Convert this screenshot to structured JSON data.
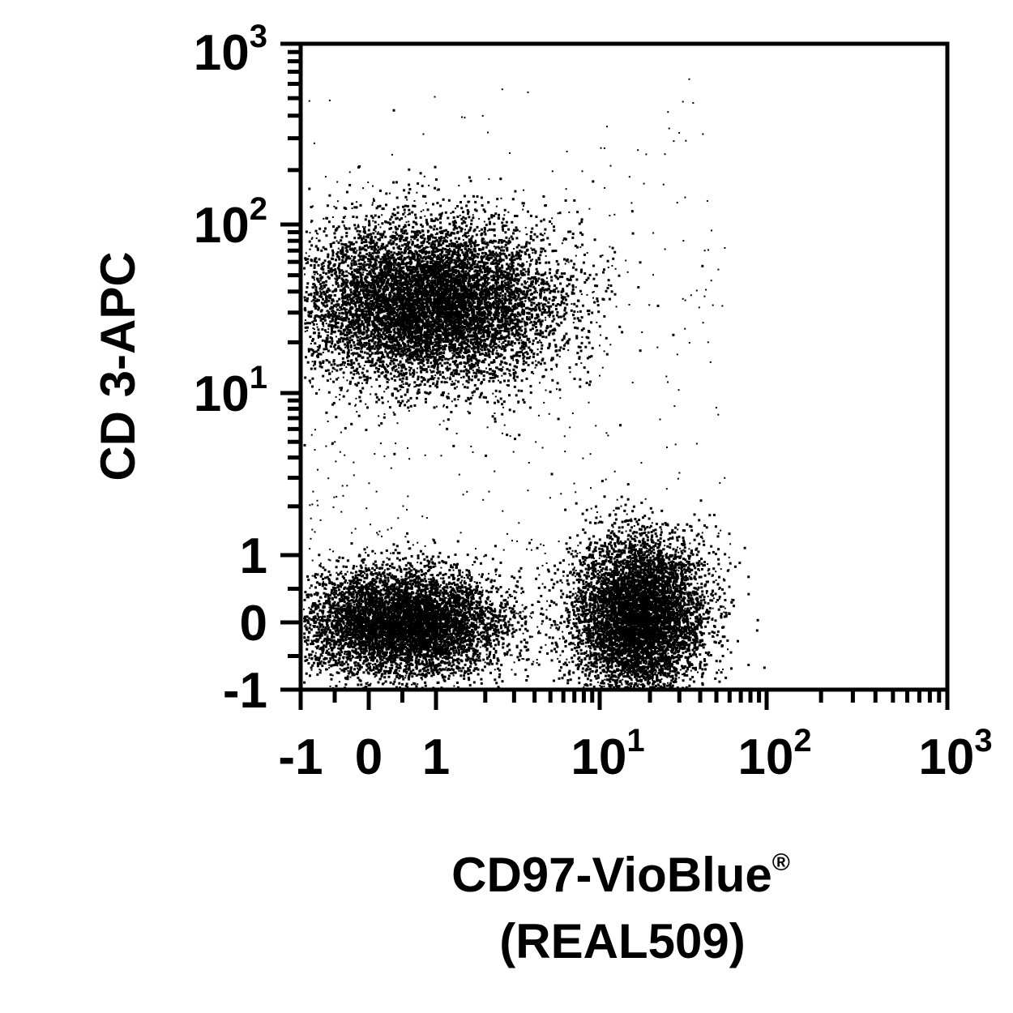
{
  "chart_data": {
    "type": "scatter",
    "x_axis": {
      "label_line1": "CD97-VioBlue",
      "label_mark": "®",
      "label_line2": "(REAL509)",
      "scale": "biexponential",
      "range": [
        -1,
        1000
      ],
      "tick_labels": [
        {
          "value": -1,
          "base": "-1",
          "exp": ""
        },
        {
          "value": 0,
          "base": "0",
          "exp": ""
        },
        {
          "value": 1,
          "base": "1",
          "exp": ""
        },
        {
          "value": 10,
          "base": "10",
          "exp": "1"
        },
        {
          "value": 100,
          "base": "10",
          "exp": "2"
        },
        {
          "value": 1000,
          "base": "10",
          "exp": "3"
        }
      ]
    },
    "y_axis": {
      "label": "CD 3-APC",
      "scale": "biexponential",
      "range": [
        -1,
        1000
      ],
      "tick_labels": [
        {
          "value": -1,
          "base": "-1",
          "exp": ""
        },
        {
          "value": 0,
          "base": "0",
          "exp": ""
        },
        {
          "value": 1,
          "base": "1",
          "exp": ""
        },
        {
          "value": 10,
          "base": "10",
          "exp": "1"
        },
        {
          "value": 100,
          "base": "10",
          "exp": "2"
        },
        {
          "value": 1000,
          "base": "10",
          "exp": "3"
        }
      ]
    },
    "grid": false,
    "marker_color": "#000000",
    "populations": [
      {
        "description": "CD3+ CD97- cluster",
        "x_center": 0.9,
        "y_center": 35,
        "x_spread_decades": 0.35,
        "y_spread_decades": 0.18,
        "relative_density": "very high"
      },
      {
        "description": "CD3- CD97- cluster",
        "x_center": 0.5,
        "y_center": 0,
        "x_spread_decades": 0.45,
        "y_spread_decades": 0.3,
        "relative_density": "high"
      },
      {
        "description": "CD3- CD97+ cluster",
        "x_center": 17,
        "y_center": 0.1,
        "x_spread_decades": 0.15,
        "y_spread_decades": 0.45,
        "relative_density": "high"
      },
      {
        "description": "sparse events",
        "x_range": [
          -1,
          60
        ],
        "y_range": [
          -1,
          900
        ],
        "relative_density": "low"
      }
    ]
  }
}
